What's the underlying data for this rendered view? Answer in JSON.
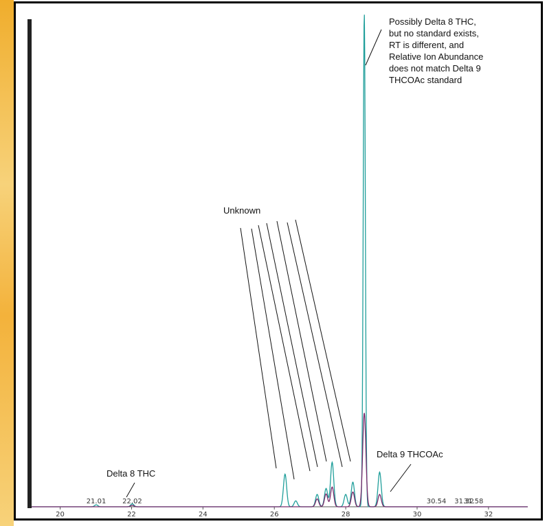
{
  "colors": {
    "series_teal": "#1f9e9a",
    "series_purple": "#7a2a6b",
    "axis": "#555555",
    "annotation": "#111111",
    "frame": "#000000"
  },
  "chart_data": {
    "type": "line",
    "xlim": [
      19.2,
      33.1
    ],
    "ylim": [
      0,
      1
    ],
    "x_ticks": [
      "20",
      "22",
      "24",
      "26",
      "28",
      "30",
      "32"
    ],
    "grid": false,
    "series": [
      {
        "peaks": [
          {
            "x": 21.01,
            "h": 0.004
          },
          {
            "x": 22.02,
            "h": 0.006
          },
          {
            "x": 26.3,
            "h": 0.066
          },
          {
            "x": 26.6,
            "h": 0.012
          },
          {
            "x": 27.2,
            "h": 0.025
          },
          {
            "x": 27.45,
            "h": 0.037
          },
          {
            "x": 27.62,
            "h": 0.09
          },
          {
            "x": 28.0,
            "h": 0.025
          },
          {
            "x": 28.2,
            "h": 0.05
          },
          {
            "x": 28.52,
            "h": 1.0
          },
          {
            "x": 28.95,
            "h": 0.07
          }
        ]
      },
      {
        "peaks": [
          {
            "x": 22.02,
            "h": 0.003
          },
          {
            "x": 27.2,
            "h": 0.016
          },
          {
            "x": 27.45,
            "h": 0.026
          },
          {
            "x": 27.62,
            "h": 0.04
          },
          {
            "x": 28.2,
            "h": 0.03
          },
          {
            "x": 28.52,
            "h": 0.19
          },
          {
            "x": 28.95,
            "h": 0.025
          }
        ]
      }
    ],
    "peak_labels": [
      {
        "x": 21.01,
        "text": "21.01"
      },
      {
        "x": 22.02,
        "text": "22.02"
      },
      {
        "x": 30.54,
        "text": "30.54"
      },
      {
        "x": 31.32,
        "text": "31.32"
      },
      {
        "x": 31.58,
        "text": "31.58"
      }
    ],
    "annotations": {
      "possibly_delta8": [
        "Possibly Delta 8 THC,",
        "but no standard exists,",
        "RT is different, and",
        "Relative Ion Abundance",
        "does not match Delta 9",
        "THCOAc standard"
      ],
      "unknown": "Unknown",
      "delta9": "Delta 9 THCOAc",
      "delta8": "Delta 8 THC"
    }
  }
}
